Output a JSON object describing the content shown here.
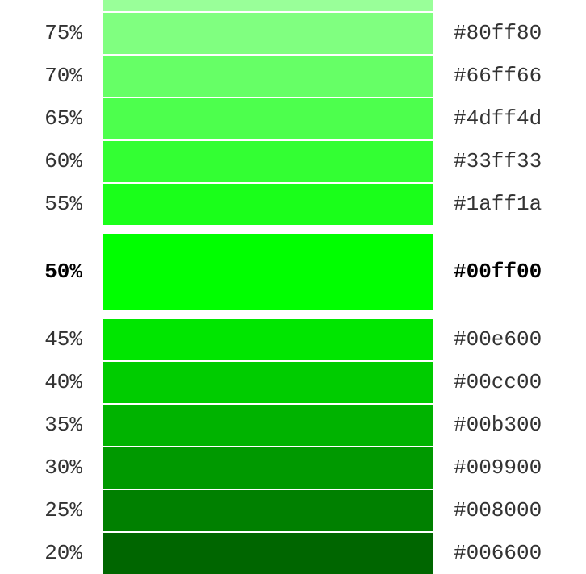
{
  "swatches": [
    {
      "percent": "",
      "hex": "",
      "color": "#99ff99"
    },
    {
      "percent": "75%",
      "hex": "#80ff80",
      "color": "#80ff80"
    },
    {
      "percent": "70%",
      "hex": "#66ff66",
      "color": "#66ff66"
    },
    {
      "percent": "65%",
      "hex": "#4dff4d",
      "color": "#4dff4d"
    },
    {
      "percent": "60%",
      "hex": "#33ff33",
      "color": "#33ff33"
    },
    {
      "percent": "55%",
      "hex": "#1aff1a",
      "color": "#1aff1a"
    },
    {
      "percent": "50%",
      "hex": "#00ff00",
      "color": "#00ff00"
    },
    {
      "percent": "45%",
      "hex": "#00e600",
      "color": "#00e600"
    },
    {
      "percent": "40%",
      "hex": "#00cc00",
      "color": "#00cc00"
    },
    {
      "percent": "35%",
      "hex": "#00b300",
      "color": "#00b300"
    },
    {
      "percent": "30%",
      "hex": "#009900",
      "color": "#009900"
    },
    {
      "percent": "25%",
      "hex": "#008000",
      "color": "#008000"
    },
    {
      "percent": "20%",
      "hex": "#006600",
      "color": "#006600"
    }
  ]
}
